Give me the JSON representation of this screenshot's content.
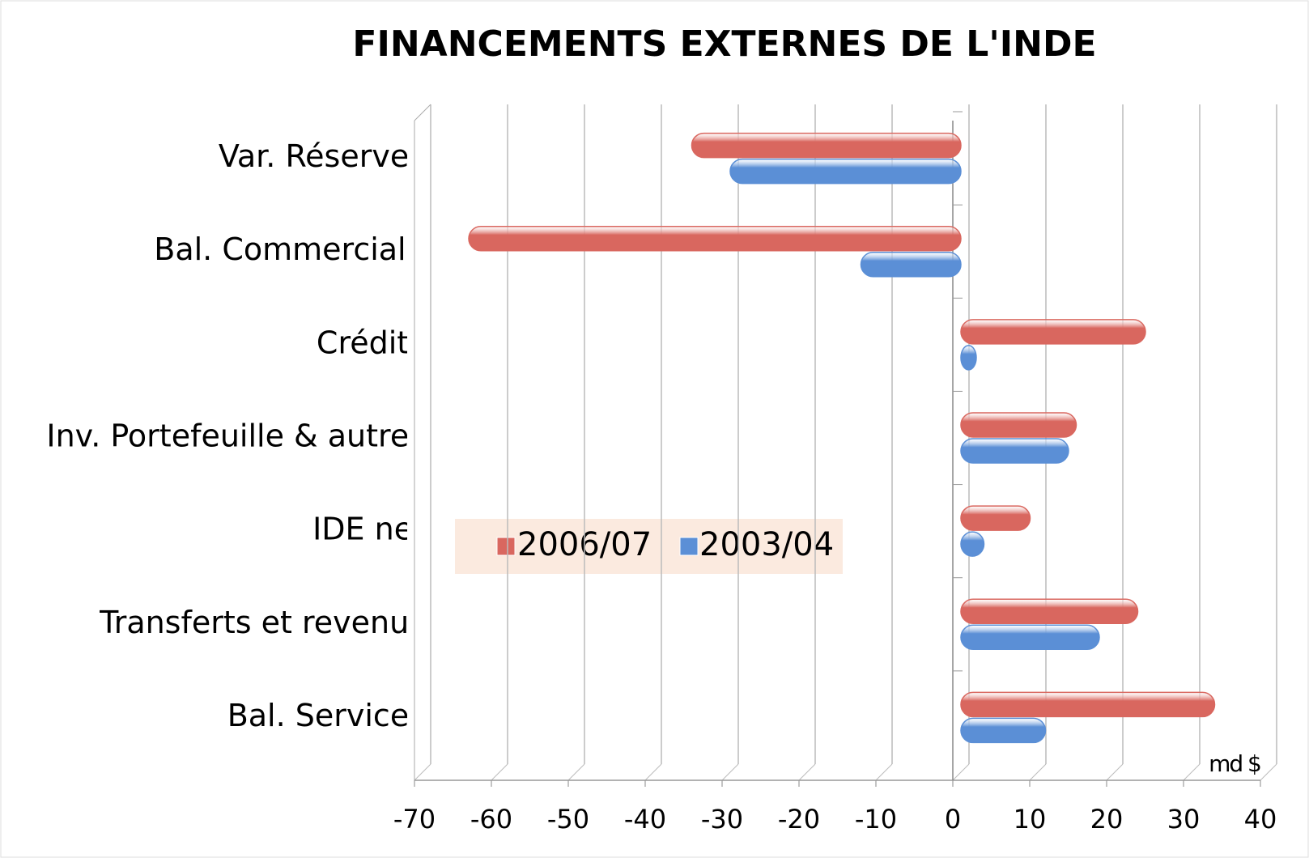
{
  "chart_data": {
    "type": "hbar",
    "title": "FINANCEMENTS EXTERNES DE L'INDE",
    "categories": [
      "Var. Réserves",
      "Bal. Commerciale",
      "Crédits",
      "Inv. Portefeuille & autres",
      "IDE net",
      "Transferts et revenus",
      "Bal. Services"
    ],
    "series": [
      {
        "name": "2006/07",
        "color": "#d9675f",
        "values": [
          -35,
          -64,
          24,
          15,
          9,
          23,
          33
        ]
      },
      {
        "name": "2003/04",
        "color": "#5b8fd6",
        "values": [
          -30,
          -13,
          2,
          14,
          3,
          18,
          11
        ]
      }
    ],
    "xlim": [
      -70,
      40
    ],
    "xticks": [
      -70,
      -60,
      -50,
      -40,
      -30,
      -20,
      -10,
      0,
      10,
      20,
      30,
      40
    ],
    "annotation": "md $",
    "grid": true
  }
}
